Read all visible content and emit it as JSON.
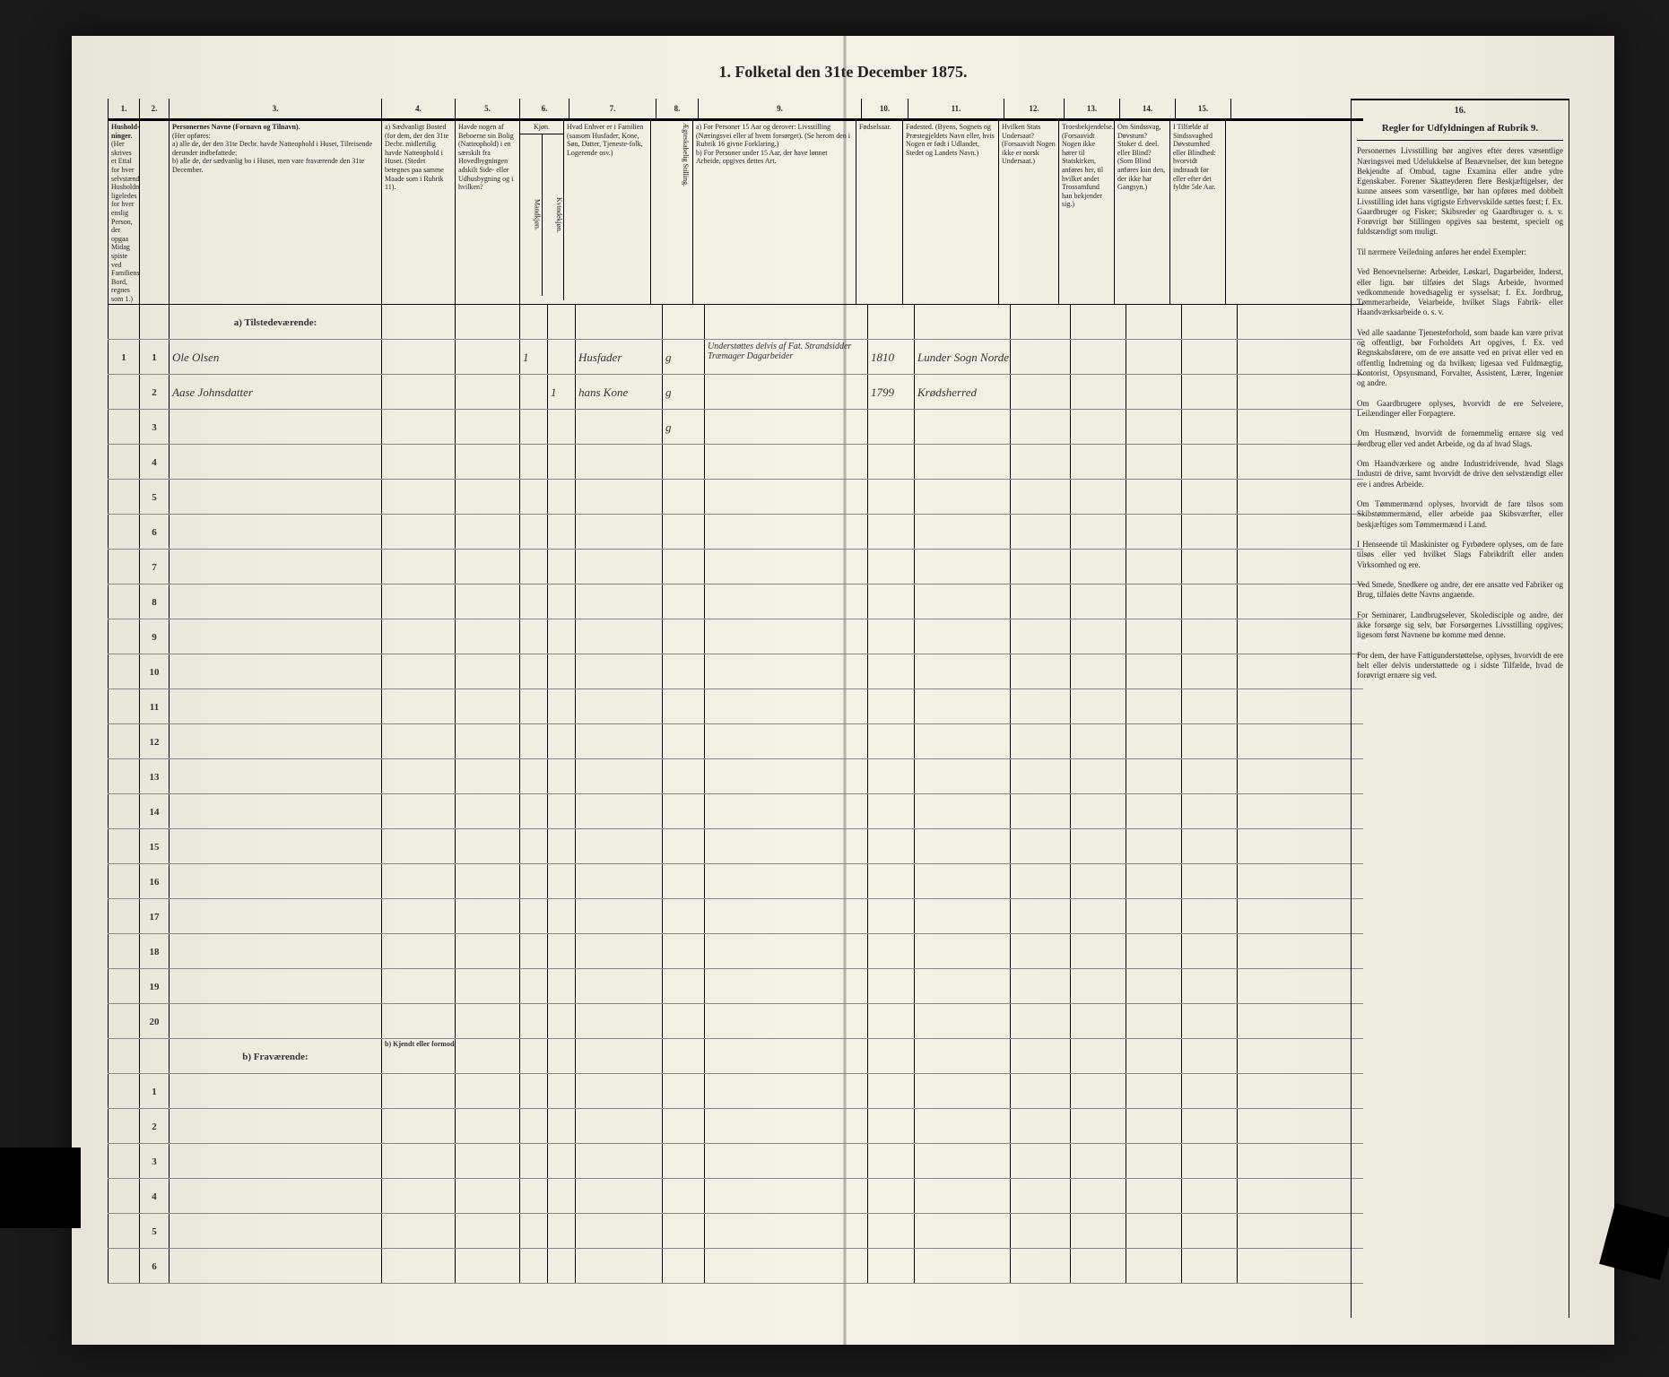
{
  "title": "1. Folketal den 31te December 1875.",
  "columns": {
    "nums": [
      "1.",
      "2.",
      "3.",
      "4.",
      "5.",
      "6.",
      "7.",
      "8.",
      "9.",
      "10.",
      "11.",
      "12.",
      "13.",
      "14.",
      "15.",
      "16."
    ],
    "h1": "Hushold-ninger.",
    "h1_sub": "(Her skrives et Ettal for hver selvstændig Husholdning; ligeledes for hver enslig Person, der opgaa Midag spiste ved Familiens Bord, regnes som 1.)",
    "h2": "",
    "h3_title": "Personernes Navne (Fornavn og Tilnavn).",
    "h3_sub": "(Her opføres:\na) alle de, der den 31te Decbr. havde Natteophold i Huset, Tilreisende derunder indbefattede;\nb) alle de, der sædvanlig bo i Huset, men vare fraværende den 31te December.",
    "h4": "a) Sædvanligt Bosted (for dem, der den 31te Decbr. midlertilig havde Natteophold i Huset. (Stedet betegnes paa samme Maade som i Rubrik 11).",
    "h5": "Havde nogen af Beboerne sin Bolig (Natteophold) i en særskilt fra Hovedbygningen adskilt Side- eller Udhusbygning og i hvilken?",
    "h6": "Kjøn.",
    "h6_m": "Mandkjøn.",
    "h6_k": "Kvindekjøn.",
    "h7": "Hvad Enhver er i Familien (saasom Husfader, Kone, Søn, Datter, Tjeneste-folk, Logerende osv.)",
    "h8": "Ægteskabelig Stilling.",
    "h9": "a) For Personer 15 Aar og derover: Livsstilling (Næringsvei eller af hvem forsørget). (Se herom den i Rubrik 16 givne Forklaring.)\nb) For Personer under 15 Aar, der have lønnet Arbeide, opgives dettes Art.",
    "h10": "Fødselsaar.",
    "h11": "Fødested. (Byens, Sognets og Præstegjeldets Navn eller, hvis Nogen er født i Udlandet, Stedet og Landets Navn.)",
    "h12": "Hvilken Stats Undersaat? (Forsaavidt Nogen ikke er norsk Undersaat.)",
    "h13": "Troesbekjendelse. (Forsaavidt Nogen ikke hører til Statskirken, anføres her, til hvilket andet Trossamfund han bekjender sig.)",
    "h14": "Om Sindssvag, Døvstum? Stoker d. deel. eller Blind? (Som Blind anføres kun den, der ikke har Gangsyn.)",
    "h15": "I Tilfælde af Sindssvaghed Døvstumhed eller Blindhed: hvorvidt indtraadt før eller efter det fyldte 5de Aar.",
    "h16_title": "Regler for Udfyldningen af Rubrik 9."
  },
  "sections": {
    "a": "a) Tilstedeværende:",
    "b": "b) Fraværende:",
    "b_sub": "b) Kjendt eller formodet Opholdssted."
  },
  "rows_a": [
    {
      "n": "1",
      "hh": "1",
      "name": "Ole Olsen",
      "m": "1",
      "k": "",
      "fam": "Husfader",
      "civ": "g",
      "occ": "Understøttes delvis af Fat. Strandsidder Træmager Dagarbeider",
      "year": "1810",
      "place": "Lunder Sogn Norderhov"
    },
    {
      "n": "2",
      "hh": "",
      "name": "Aase Johnsdatter",
      "m": "",
      "k": "1",
      "fam": "hans Kone",
      "civ": "g",
      "occ": "",
      "year": "1799",
      "place": "Krødsherred"
    },
    {
      "n": "3",
      "hh": "",
      "name": "",
      "m": "",
      "k": "",
      "fam": "",
      "civ": "g",
      "occ": "",
      "year": "",
      "place": ""
    },
    {
      "n": "4"
    },
    {
      "n": "5"
    },
    {
      "n": "6"
    },
    {
      "n": "7"
    },
    {
      "n": "8"
    },
    {
      "n": "9"
    },
    {
      "n": "10"
    },
    {
      "n": "11"
    },
    {
      "n": "12"
    },
    {
      "n": "13"
    },
    {
      "n": "14"
    },
    {
      "n": "15"
    },
    {
      "n": "16"
    },
    {
      "n": "17"
    },
    {
      "n": "18"
    },
    {
      "n": "19"
    },
    {
      "n": "20"
    }
  ],
  "rows_b": [
    {
      "n": "1"
    },
    {
      "n": "2"
    },
    {
      "n": "3"
    },
    {
      "n": "4"
    },
    {
      "n": "5"
    },
    {
      "n": "6"
    }
  ],
  "instructions": {
    "head": "Regler for Udfyldningen af Rubrik 9.",
    "text": "Personernes Livsstilling bør angives efter deres væsentlige Næringsvei med Udelukkelse af Benævnelser, der kun betegne Bekjendte af Ombud, tagne Examina eller andre ydre Egenskaber. Forener Skatteyderen flere Beskjæftigelser, der kunne ansees som væsentlige, bør han opføres med dobbelt Livsstilling idet hans vigtigste Erhvervskilde sættes først; f. Ex. Gaardbruger og Fisker; Skibsreder og Gaardbruger o. s. v. Forøvrigt bør Stillingen opgives saa bestemt, specielt og fuldstændigt som muligt.\n\nTil nærmere Veiledning anføres her endel Exempler:\n\nVed Benoevnelserne: Arbeider, Løskarl, Dagarbeider, Inderst, eller lign. bør tilføies det Slags Arbeide, hvormed vedkommende hovedsagelig er sysselsat; f. Ex. Jordbrug, Tømmerarbeide, Veiarbeide, hvilket Slags Fabrik- eller Haandværksarbeide o. s. v.\n\nVed alle saadanne Tjenesteforhold, som baade kan være privat og offentligt, bør Forholdets Art opgives, f. Ex. ved Regnskabsførere, om de ere ansatte ved en privat eller ved en offentlig Indretning og da hvilken; ligesaa ved Fuldmægtig, Kontorist, Opsynsmand, Forvalter, Assistent, Lærer, Ingeniør og andre.\n\nOm Gaardbrugere oplyses, hvorvidt de ere Selveiere, Leilændinger eller Forpagtere.\n\nOm Husmænd, hvorvidt de fornemmelig ernære sig ved Jordbrug eller ved andet Arbeide, og da af hvad Slags.\n\nOm Haandværkere og andre Industridrivende, hvad Slags Industri de drive, samt hvorvidt de drive den selvstændigt eller ere i andres Arbeide.\n\nOm Tømmermænd oplyses, hvorvidt de fare tilsos som Skibstømmermænd, eller arbeide paa Skibsværfter, eller beskjæftiges som Tømmermænd i Land.\n\nI Henseende til Maskinister og Fyrbødere oplyses, om de fare tilsøs eller ved hvilket Slags Fabrikdrift eller anden Virksomhed og ere.\n\nVed Smede, Snedkere og andre, der ere ansatte ved Fabriker og Brug, tilføies dette Navns angaende.\n\nFor Seminarer, Landbrugselever, Skoledisciple og andre, der ikke forsørge sig selv, bør Forsørgernes Livsstilling opgives; ligesom først Navnene bø komme med denne.\n\nFor dem, der have Fattigunderstøttelse, oplyses, hvorvidt de ere helt eller delvis understøttede og i sidste Tilfælde, hvad de forøvrigt ernære sig ved."
  },
  "colors": {
    "paper": "#f0ece0",
    "ink": "#222222",
    "line": "#000000",
    "faint_line": "#888888"
  }
}
